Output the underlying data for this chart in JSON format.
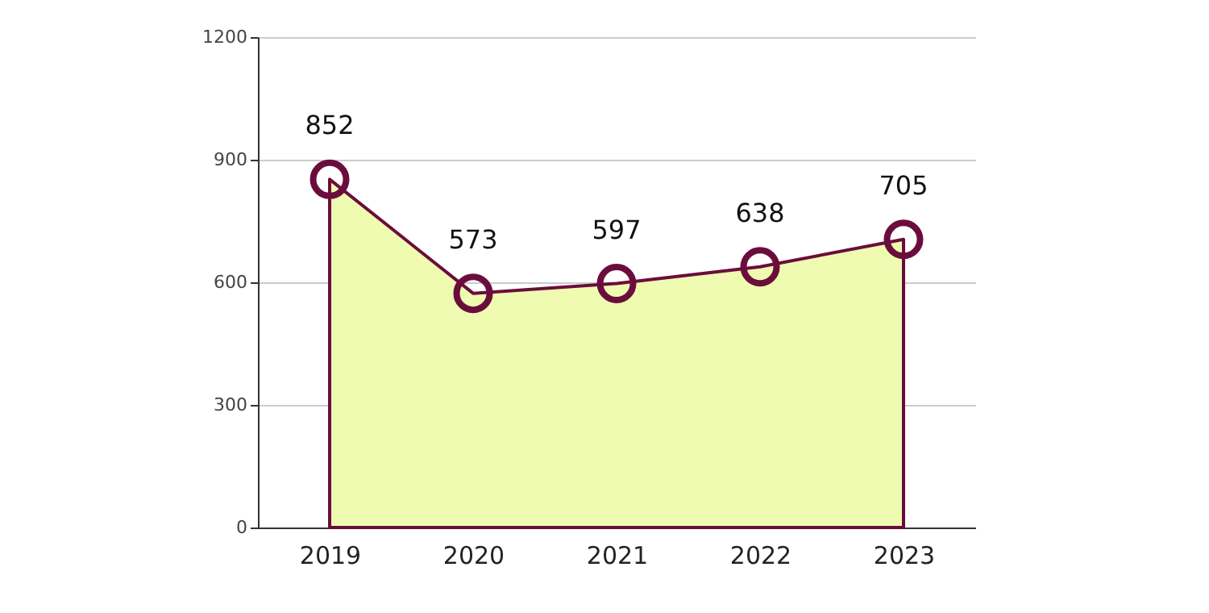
{
  "chart_data": {
    "type": "area",
    "categories": [
      "2019",
      "2020",
      "2021",
      "2022",
      "2023"
    ],
    "series": [
      {
        "color": "#6b0d3c",
        "values": [
          852,
          573,
          597,
          638,
          705
        ]
      }
    ],
    "ylim": [
      0,
      1200
    ],
    "yticks": [
      0,
      300,
      600,
      900,
      1200
    ],
    "grid": "y",
    "data_labels": true,
    "marker": "circle",
    "line_style": "solid"
  }
}
